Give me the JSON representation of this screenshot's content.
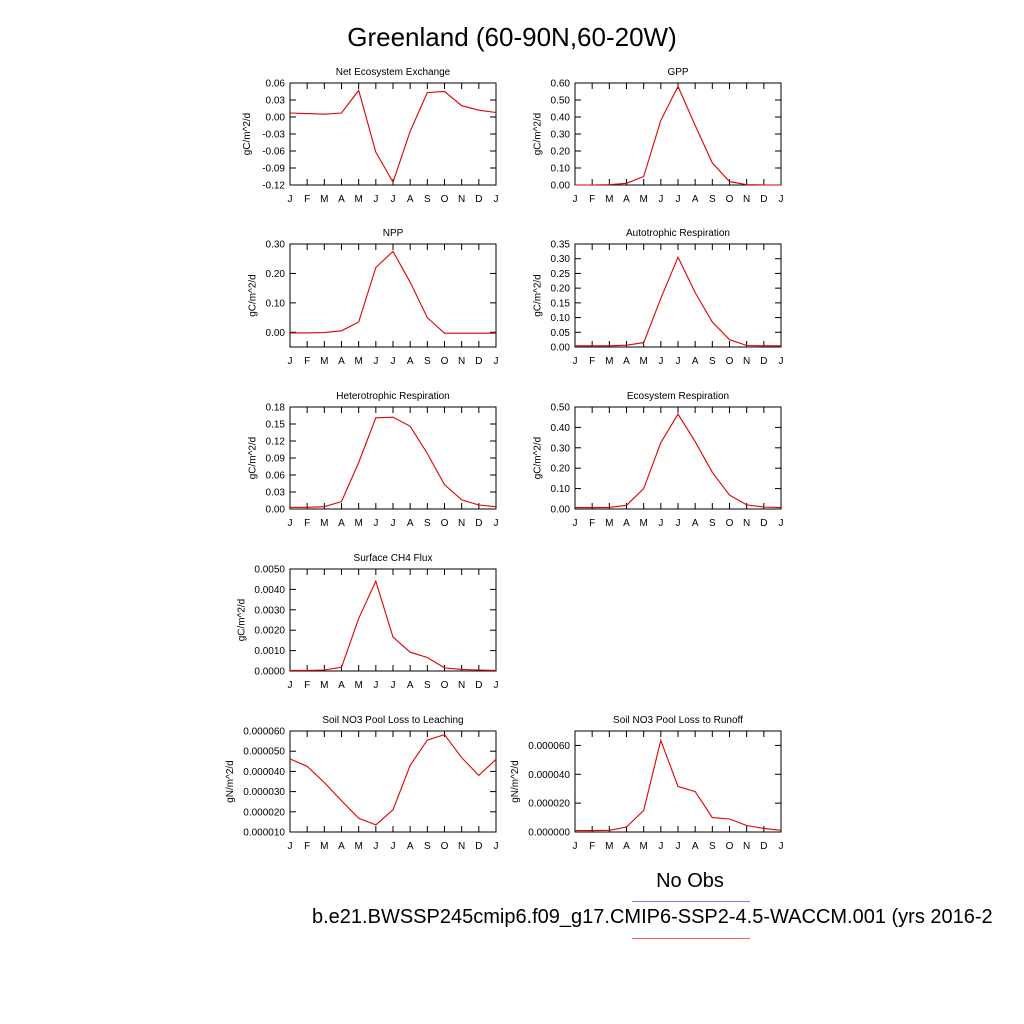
{
  "title": "Greenland (60-90N,60-20W)",
  "legend": {
    "obs_label": "No Obs",
    "obs_color": "#7777ff",
    "case_label": "b.e21.BWSSP245cmip6.f09_g17.CMIP6-SSP2-4.5-WACCM.001 (yrs 2016-2",
    "case_color": "#ff5555"
  },
  "line_color": "#dd0000",
  "chart_data": [
    {
      "type": "line",
      "title": "Net Ecosystem Exchange",
      "ylabel": "gC/m^2/d",
      "x_ticks": [
        "J",
        "F",
        "M",
        "A",
        "M",
        "J",
        "J",
        "A",
        "S",
        "O",
        "N",
        "D",
        "J"
      ],
      "y_ticks": [
        "0.06",
        "0.03",
        "0.00",
        "-0.03",
        "-0.06",
        "-0.09",
        "-0.12"
      ],
      "ylim": [
        -0.12,
        0.06
      ],
      "values": [
        0.007,
        0.006,
        0.005,
        0.007,
        0.047,
        -0.062,
        -0.115,
        -0.025,
        0.043,
        0.045,
        0.02,
        0.012,
        0.008
      ]
    },
    {
      "type": "line",
      "title": "GPP",
      "ylabel": "gC/m^2/d",
      "x_ticks": [
        "J",
        "F",
        "M",
        "A",
        "M",
        "J",
        "J",
        "A",
        "S",
        "O",
        "N",
        "D",
        "J"
      ],
      "y_ticks": [
        "0.60",
        "0.50",
        "0.40",
        "0.30",
        "0.20",
        "0.10",
        "0.00"
      ],
      "ylim": [
        0.0,
        0.6
      ],
      "values": [
        0.0,
        0.0,
        0.002,
        0.01,
        0.05,
        0.38,
        0.58,
        0.35,
        0.13,
        0.02,
        0.002,
        0.0,
        0.0
      ]
    },
    {
      "type": "line",
      "title": "NPP",
      "ylabel": "gC/m^2/d",
      "x_ticks": [
        "J",
        "F",
        "M",
        "A",
        "M",
        "J",
        "J",
        "A",
        "S",
        "O",
        "N",
        "D",
        "J"
      ],
      "y_ticks": [
        "0.30",
        "0.20",
        "0.10",
        "0.00"
      ],
      "ylim": [
        -0.05,
        0.3
      ],
      "values": [
        -0.002,
        -0.002,
        -0.001,
        0.005,
        0.035,
        0.22,
        0.275,
        0.17,
        0.05,
        -0.003,
        -0.003,
        -0.003,
        -0.003
      ]
    },
    {
      "type": "line",
      "title": "Autotrophic Respiration",
      "ylabel": "gC/m^2/d",
      "x_ticks": [
        "J",
        "F",
        "M",
        "A",
        "M",
        "J",
        "J",
        "A",
        "S",
        "O",
        "N",
        "D",
        "J"
      ],
      "y_ticks": [
        "0.35",
        "0.30",
        "0.25",
        "0.20",
        "0.15",
        "0.10",
        "0.05",
        "0.00"
      ],
      "ylim": [
        0.0,
        0.35
      ],
      "values": [
        0.004,
        0.004,
        0.004,
        0.006,
        0.015,
        0.165,
        0.305,
        0.185,
        0.085,
        0.025,
        0.005,
        0.004,
        0.004
      ]
    },
    {
      "type": "line",
      "title": "Heterotrophic Respiration",
      "ylabel": "gC/m^2/d",
      "x_ticks": [
        "J",
        "F",
        "M",
        "A",
        "M",
        "J",
        "J",
        "A",
        "S",
        "O",
        "N",
        "D",
        "J"
      ],
      "y_ticks": [
        "0.18",
        "0.15",
        "0.12",
        "0.09",
        "0.06",
        "0.03",
        "0.00"
      ],
      "ylim": [
        0.0,
        0.18
      ],
      "values": [
        0.003,
        0.003,
        0.004,
        0.013,
        0.082,
        0.161,
        0.162,
        0.146,
        0.098,
        0.043,
        0.016,
        0.007,
        0.004
      ]
    },
    {
      "type": "line",
      "title": "Ecosystem Respiration",
      "ylabel": "gC/m^2/d",
      "x_ticks": [
        "J",
        "F",
        "M",
        "A",
        "M",
        "J",
        "J",
        "A",
        "S",
        "O",
        "N",
        "D",
        "J"
      ],
      "y_ticks": [
        "0.50",
        "0.40",
        "0.30",
        "0.20",
        "0.10",
        "0.00"
      ],
      "ylim": [
        0.0,
        0.5
      ],
      "values": [
        0.007,
        0.007,
        0.008,
        0.018,
        0.1,
        0.325,
        0.465,
        0.33,
        0.18,
        0.068,
        0.02,
        0.01,
        0.007
      ]
    },
    {
      "type": "line",
      "title": "Surface CH4 Flux",
      "ylabel": "gC/m^2/d",
      "x_ticks": [
        "J",
        "F",
        "M",
        "A",
        "M",
        "J",
        "J",
        "A",
        "S",
        "O",
        "N",
        "D",
        "J"
      ],
      "y_ticks": [
        "0.0050",
        "0.0040",
        "0.0030",
        "0.0020",
        "0.0010",
        "0.0000"
      ],
      "ylim": [
        0.0,
        0.005
      ],
      "values": [
        3e-05,
        3e-05,
        5e-05,
        0.00018,
        0.00258,
        0.0044,
        0.00166,
        0.00092,
        0.00066,
        0.00015,
        8e-05,
        5e-05,
        3e-05
      ]
    },
    {
      "type": "line",
      "title": "Soil NO3 Pool Loss to Leaching",
      "ylabel": "gN/m^2/d",
      "x_ticks": [
        "J",
        "F",
        "M",
        "A",
        "M",
        "J",
        "J",
        "A",
        "S",
        "O",
        "N",
        "D",
        "J"
      ],
      "y_ticks": [
        "0.000060",
        "0.000050",
        "0.000040",
        "0.000030",
        "0.000020",
        "0.000010"
      ],
      "ylim": [
        1e-05,
        6e-05
      ],
      "values": [
        4.62e-05,
        4.25e-05,
        3.45e-05,
        2.55e-05,
        1.68e-05,
        1.35e-05,
        2.1e-05,
        4.3e-05,
        5.55e-05,
        5.82e-05,
        4.68e-05,
        3.8e-05,
        4.6e-05
      ]
    },
    {
      "type": "line",
      "title": "Soil NO3 Pool Loss to Runoff",
      "ylabel": "gN/m^2/d",
      "x_ticks": [
        "J",
        "F",
        "M",
        "A",
        "M",
        "J",
        "J",
        "A",
        "S",
        "O",
        "N",
        "D",
        "J"
      ],
      "y_ticks": [
        "0.000060",
        "0.000040",
        "0.000020",
        "0.000000"
      ],
      "ylim": [
        0.0,
        7e-05
      ],
      "values": [
        1e-06,
        1e-06,
        1.2e-06,
        3.5e-06,
        1.5e-05,
        6.35e-05,
        3.15e-05,
        2.8e-05,
        1e-05,
        9e-06,
        4.5e-06,
        2.5e-06,
        1.2e-06
      ]
    }
  ]
}
